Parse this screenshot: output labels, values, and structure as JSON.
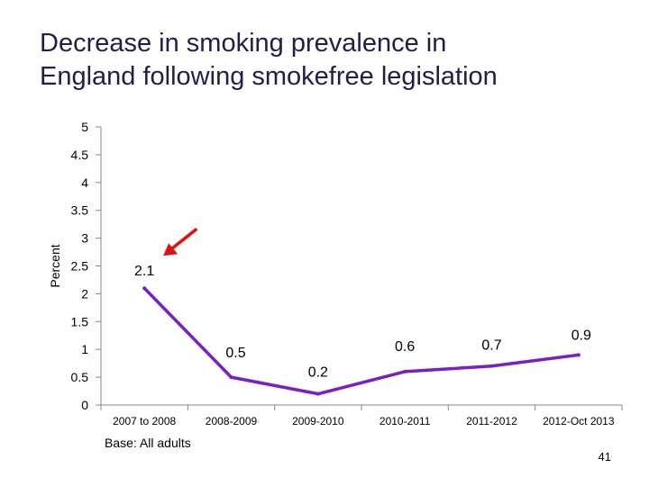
{
  "title": {
    "line1": "Decrease in smoking prevalence in",
    "line2": "England following smokefree legislation"
  },
  "footnote": "Base: All adults",
  "page_number": "41",
  "colors": {
    "series": "#7a1fc4",
    "arrow": "#e01010",
    "axis": "#888888",
    "title": "#1f1f4a"
  },
  "chart_data": {
    "type": "line",
    "title": "",
    "xlabel": "",
    "ylabel": "Percent",
    "ylim": [
      0,
      5
    ],
    "yticks": [
      "0",
      "0.5",
      "1",
      "1.5",
      "2",
      "2.5",
      "3",
      "3.5",
      "4",
      "4.5",
      "5"
    ],
    "yticks_values": [
      0,
      0.5,
      1,
      1.5,
      2,
      2.5,
      3,
      3.5,
      4,
      4.5,
      5
    ],
    "categories": [
      "2007 to 2008",
      "2008-2009",
      "2009-2010",
      "2010-2011",
      "2011-2012",
      "2012-Oct 2013"
    ],
    "series": [
      {
        "name": "Decrease in smoking prevalence",
        "values": [
          2.1,
          0.5,
          0.2,
          0.6,
          0.7,
          0.9
        ],
        "labels": [
          "2.1",
          "0.5",
          "0.2",
          "0.6",
          "0.7",
          "0.9"
        ]
      }
    ],
    "grid": false,
    "legend": "none",
    "annotations": [
      {
        "type": "arrow",
        "target_category": "2007 to 2008",
        "color": "#e01010"
      }
    ]
  }
}
